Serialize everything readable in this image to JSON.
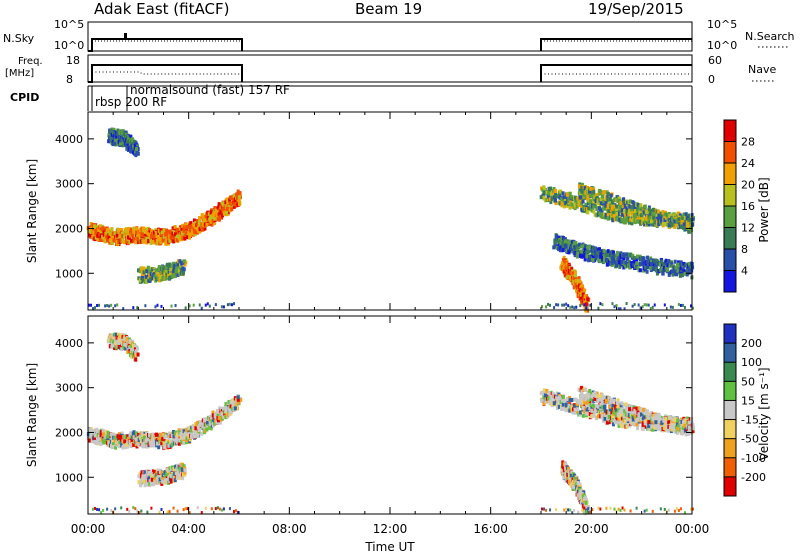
{
  "header": {
    "station": "Adak East (fitACF)",
    "beam": "Beam 19",
    "date": "19/Sep/2015"
  },
  "top_panels": {
    "nsky_label": "N.Sky",
    "nsky_ticks": [
      "10^5",
      "10^0"
    ],
    "nsearch_label": "N.Search",
    "nsearch_ticks": [
      "10^5",
      "10^0"
    ],
    "freq_label": "Freq.",
    "freq_unit": "[MHz]",
    "freq_ticks": [
      "18",
      "8"
    ],
    "nave_label": "Nave",
    "nave_ticks": [
      "60",
      "0"
    ],
    "cpid_label": "CPID",
    "cpid_entries": [
      "rbsp 200 RF",
      "normalsound (fast) 157 RF"
    ]
  },
  "chart_data": [
    {
      "type": "heatmap",
      "name": "power-panel",
      "ylabel": "Slant Range [km]",
      "xlabel": "",
      "ylim": [
        180,
        4600
      ],
      "xlim": [
        0,
        24
      ],
      "y_ticks": [
        1000,
        2000,
        3000,
        4000
      ],
      "x_ticks": [
        "00:00",
        "04:00",
        "08:00",
        "12:00",
        "16:00",
        "20:00",
        "00:00"
      ],
      "colorbar": {
        "label": "Power [dB]",
        "ticks": [
          "4",
          "8",
          "12",
          "16",
          "20",
          "24",
          "28"
        ],
        "colors": [
          "#1515e0",
          "#2a4fa8",
          "#3a7a55",
          "#5aa040",
          "#b8c020",
          "#f0a000",
          "#f05000",
          "#e00000"
        ]
      },
      "data_windows_ut_hours": [
        [
          0,
          6
        ],
        [
          18,
          24
        ]
      ],
      "echo_bands": [
        {
          "t": [
            0.0,
            1.0,
            2.0,
            3.0,
            4.0,
            5.0,
            6.0
          ],
          "r": [
            2000,
            1850,
            1900,
            1850,
            2000,
            2350,
            2750
          ],
          "level": "high"
        },
        {
          "t": [
            2.0,
            3.0,
            3.8
          ],
          "r": [
            1000,
            1050,
            1200
          ],
          "level": "mid"
        },
        {
          "t": [
            0.8,
            1.4,
            1.9
          ],
          "r": [
            4100,
            4050,
            3800
          ],
          "level": "low"
        },
        {
          "t": [
            18.0,
            19.5,
            21.0,
            22.5,
            24.0
          ],
          "r": [
            2850,
            2600,
            2350,
            2250,
            2200
          ],
          "level": "mid"
        },
        {
          "t": [
            19.5,
            21.0,
            22.5,
            24.0
          ],
          "r": [
            2900,
            2600,
            2300,
            2100
          ],
          "level": "mid"
        },
        {
          "t": [
            18.5,
            19.7,
            21.0,
            22.5,
            24.0
          ],
          "r": [
            1750,
            1500,
            1350,
            1200,
            1100
          ],
          "level": "low"
        },
        {
          "t": [
            18.8,
            19.3,
            19.8
          ],
          "r": [
            1250,
            900,
            300
          ],
          "level": "high"
        }
      ]
    },
    {
      "type": "heatmap",
      "name": "velocity-panel",
      "ylabel": "Slant Range [km]",
      "xlabel": "Time UT",
      "ylim": [
        180,
        4600
      ],
      "xlim": [
        0,
        24
      ],
      "y_ticks": [
        1000,
        2000,
        3000,
        4000
      ],
      "x_ticks": [
        "00:00",
        "04:00",
        "08:00",
        "12:00",
        "16:00",
        "20:00",
        "00:00"
      ],
      "colorbar": {
        "label": "Velocity [m s⁻¹]",
        "ticks": [
          "200",
          "100",
          "50",
          "15",
          "-15",
          "-50",
          "-100",
          "-200"
        ],
        "colors": [
          "#2030c0",
          "#3060a0",
          "#3a8a50",
          "#60c040",
          "#c8c8c8",
          "#f0d060",
          "#f0a020",
          "#f06000",
          "#e00000"
        ]
      },
      "data_windows_ut_hours": [
        [
          0,
          6
        ],
        [
          18,
          24
        ]
      ],
      "echo_bands": [
        {
          "t": [
            0.0,
            1.0,
            2.0,
            3.0,
            4.0,
            5.0,
            6.0
          ],
          "r": [
            2000,
            1850,
            1900,
            1850,
            2000,
            2350,
            2750
          ],
          "level": "gray"
        },
        {
          "t": [
            2.0,
            3.0,
            3.8
          ],
          "r": [
            1000,
            1050,
            1200
          ],
          "level": "gray"
        },
        {
          "t": [
            0.8,
            1.4,
            1.9
          ],
          "r": [
            4100,
            4050,
            3800
          ],
          "level": "gray"
        },
        {
          "t": [
            18.0,
            19.5,
            21.0,
            22.5,
            24.0
          ],
          "r": [
            2850,
            2600,
            2350,
            2250,
            2200
          ],
          "level": "gray"
        },
        {
          "t": [
            19.5,
            21.0,
            22.5,
            24.0
          ],
          "r": [
            2900,
            2600,
            2300,
            2100
          ],
          "level": "gray"
        },
        {
          "t": [
            18.8,
            19.3,
            19.8
          ],
          "r": [
            1250,
            900,
            300
          ],
          "level": "gray"
        }
      ]
    }
  ]
}
